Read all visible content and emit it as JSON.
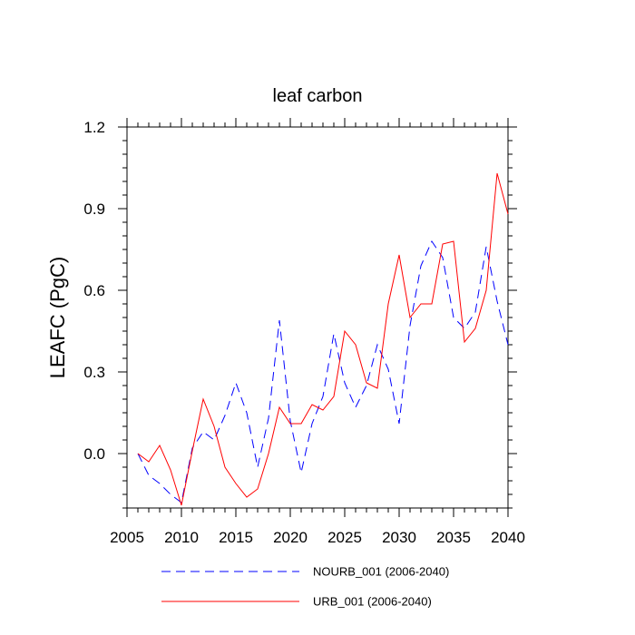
{
  "chart_data": {
    "type": "line",
    "title": "leaf carbon",
    "xlabel": "",
    "ylabel": "LEAFC  (PgC)",
    "xlim": [
      2005,
      2040
    ],
    "ylim": [
      -0.2,
      1.2
    ],
    "x_ticks": [
      2005,
      2010,
      2015,
      2020,
      2025,
      2030,
      2035,
      2040
    ],
    "x_tick_labels": [
      "2005",
      "2010",
      "2015",
      "2020",
      "2025",
      "2030",
      "2035",
      "2040"
    ],
    "y_ticks": [
      0.0,
      0.3,
      0.6,
      0.9,
      1.2
    ],
    "y_tick_labels": [
      "0.0",
      "0.3",
      "0.6",
      "0.9",
      "1.2"
    ],
    "x": [
      2006,
      2007,
      2008,
      2009,
      2010,
      2011,
      2012,
      2013,
      2014,
      2015,
      2016,
      2017,
      2018,
      2019,
      2020,
      2021,
      2022,
      2023,
      2024,
      2025,
      2026,
      2027,
      2028,
      2029,
      2030,
      2031,
      2032,
      2033,
      2034,
      2035,
      2036,
      2037,
      2038,
      2039,
      2040
    ],
    "series": [
      {
        "name": "NOURB_001 (2006-2040)",
        "color": "#0000ff",
        "style": "dashed",
        "values": [
          0.0,
          -0.08,
          -0.11,
          -0.15,
          -0.18,
          0.02,
          0.08,
          0.05,
          0.14,
          0.26,
          0.15,
          -0.05,
          0.13,
          0.49,
          0.12,
          -0.07,
          0.11,
          0.21,
          0.44,
          0.26,
          0.17,
          0.25,
          0.4,
          0.31,
          0.11,
          0.47,
          0.69,
          0.78,
          0.72,
          0.5,
          0.46,
          0.52,
          0.76,
          0.56,
          0.4
        ]
      },
      {
        "name": "URB_001 (2006-2040)",
        "color": "#ff0000",
        "style": "solid",
        "values": [
          0.0,
          -0.03,
          0.03,
          -0.06,
          -0.19,
          0.01,
          0.2,
          0.1,
          -0.05,
          -0.11,
          -0.16,
          -0.13,
          0.0,
          0.17,
          0.11,
          0.11,
          0.18,
          0.16,
          0.21,
          0.45,
          0.4,
          0.26,
          0.24,
          0.55,
          0.73,
          0.5,
          0.55,
          0.55,
          0.77,
          0.78,
          0.41,
          0.46,
          0.6,
          1.03,
          0.88
        ]
      }
    ],
    "legend_position": "bottom"
  }
}
